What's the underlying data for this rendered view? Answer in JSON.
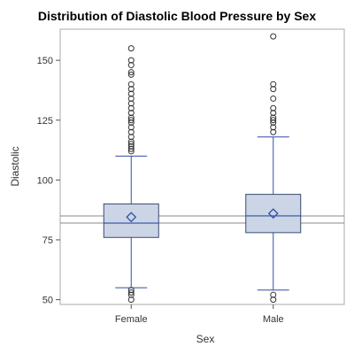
{
  "chart_data": {
    "type": "box",
    "title": "Distribution of Diastolic Blood Pressure by Sex",
    "xlabel": "Sex",
    "ylabel": "Diastolic",
    "ylim": [
      48,
      163
    ],
    "yticks": [
      50,
      75,
      100,
      125,
      150
    ],
    "grid": false,
    "legend": "none",
    "reference_lines": [
      82,
      85
    ],
    "colors": {
      "box_fill": "#cbd5e6",
      "box_stroke": "#3a4a70",
      "whisker": "#2f4fa8",
      "median": "#2f4fa8",
      "mean_marker": "#2f4fa8",
      "outlier": "#333333",
      "reference_line": "#888888",
      "frame": "#aaaaaa"
    },
    "categories": [
      {
        "name": "Female",
        "whisker_low": 55,
        "q1": 76,
        "median": 82,
        "q3": 90,
        "whisker_high": 110,
        "mean": 84.5,
        "outliers": [
          50,
          52,
          53,
          54,
          112,
          113,
          114,
          115,
          116,
          118,
          120,
          122,
          124,
          125,
          126,
          128,
          130,
          132,
          134,
          136,
          138,
          140,
          144,
          145,
          148,
          150,
          155
        ]
      },
      {
        "name": "Male",
        "whisker_low": 54,
        "q1": 78,
        "median": 85,
        "q3": 94,
        "whisker_high": 118,
        "mean": 86,
        "outliers": [
          50,
          52,
          120,
          122,
          124,
          125,
          126,
          128,
          130,
          134,
          138,
          140,
          160
        ]
      }
    ]
  }
}
